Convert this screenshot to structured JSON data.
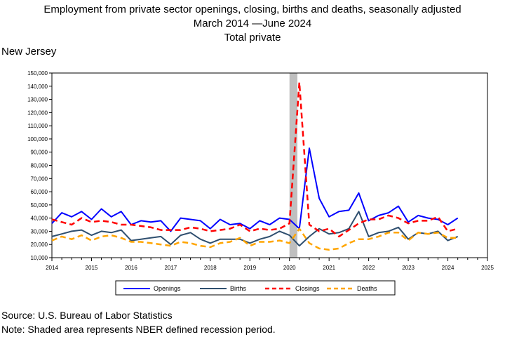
{
  "title_line1": "Employment from private sector openings, closing, births and deaths, seasonally adjusted",
  "title_line2": "March 2014 —June 2024",
  "title_line3": "Total private",
  "region": "New Jersey",
  "source": "Source: U.S. Bureau of Labor Statistics",
  "note": "Note: Shaded area represents NBER defined recession period.",
  "chart_data": {
    "type": "line",
    "xlim": [
      2014,
      2025
    ],
    "ylim": [
      10000,
      150000
    ],
    "x_ticks": [
      "2014",
      "2015",
      "2016",
      "2017",
      "2018",
      "2019",
      "2020",
      "2021",
      "2022",
      "2023",
      "2024",
      "2025"
    ],
    "y_ticks": [
      "10,000",
      "20,000",
      "30,000",
      "40,000",
      "50,000",
      "60,000",
      "70,000",
      "80,000",
      "90,000",
      "100,000",
      "110,000",
      "120,000",
      "130,000",
      "140,000",
      "150,000"
    ],
    "recession": [
      2020.0,
      2020.2
    ],
    "legend_placement": "bottom",
    "x": [
      2014.0,
      2014.25,
      2014.5,
      2014.75,
      2015.0,
      2015.25,
      2015.5,
      2015.75,
      2016.0,
      2016.25,
      2016.5,
      2016.75,
      2017.0,
      2017.25,
      2017.5,
      2017.75,
      2018.0,
      2018.25,
      2018.5,
      2018.75,
      2019.0,
      2019.25,
      2019.5,
      2019.75,
      2020.0,
      2020.25,
      2020.5,
      2020.75,
      2021.0,
      2021.25,
      2021.5,
      2021.75,
      2022.0,
      2022.25,
      2022.5,
      2022.75,
      2023.0,
      2023.25,
      2023.5,
      2023.75,
      2024.0,
      2024.25
    ],
    "series": [
      {
        "name": "Openings",
        "color": "#0000ff",
        "dash": "solid",
        "width": 2,
        "values": [
          36000,
          44000,
          41000,
          45000,
          39000,
          47000,
          41000,
          45000,
          35000,
          38000,
          37000,
          38000,
          30000,
          40000,
          39000,
          38000,
          32000,
          39000,
          35000,
          36000,
          32000,
          38000,
          35000,
          40000,
          39000,
          32000,
          93000,
          55000,
          41000,
          45000,
          46000,
          59000,
          38000,
          42000,
          44000,
          49000,
          37000,
          42000,
          40000,
          39000,
          35000,
          40000
        ]
      },
      {
        "name": "Births",
        "color": "#2f4f6f",
        "dash": "solid",
        "width": 2,
        "values": [
          26000,
          28000,
          30000,
          31000,
          27000,
          30000,
          29000,
          31000,
          23000,
          24000,
          25000,
          26000,
          20000,
          27000,
          29000,
          24000,
          21000,
          24000,
          24000,
          24000,
          21000,
          24000,
          26000,
          30000,
          27000,
          19000,
          26000,
          32000,
          28000,
          29000,
          32000,
          45000,
          26000,
          29000,
          30000,
          33000,
          24000,
          29000,
          28000,
          30000,
          23000,
          26000
        ]
      },
      {
        "name": "Closings",
        "color": "#ff0000",
        "dash": "8,5",
        "width": 2.5,
        "values": [
          39000,
          37000,
          35000,
          40000,
          37000,
          38000,
          37000,
          35000,
          35000,
          34000,
          33000,
          31000,
          31000,
          31000,
          33000,
          32000,
          30000,
          31000,
          32000,
          35000,
          30000,
          32000,
          31000,
          32000,
          36000,
          143000,
          35000,
          30000,
          32000,
          26000,
          31000,
          36000,
          39000,
          39000,
          42000,
          40000,
          36000,
          38000,
          38000,
          41000,
          30000,
          32000
        ]
      },
      {
        "name": "Deaths",
        "color": "#ffa500",
        "dash": "8,5",
        "width": 2.5,
        "values": [
          23000,
          26000,
          24000,
          27000,
          23000,
          26000,
          27000,
          25000,
          22000,
          22000,
          21000,
          20000,
          19000,
          22000,
          21000,
          19000,
          18000,
          21000,
          22000,
          25000,
          19000,
          22000,
          22000,
          23000,
          21000,
          32000,
          21000,
          17000,
          16000,
          17000,
          21000,
          24000,
          24000,
          26000,
          29000,
          29000,
          23000,
          29000,
          28000,
          29000,
          25000,
          25000
        ]
      }
    ]
  }
}
